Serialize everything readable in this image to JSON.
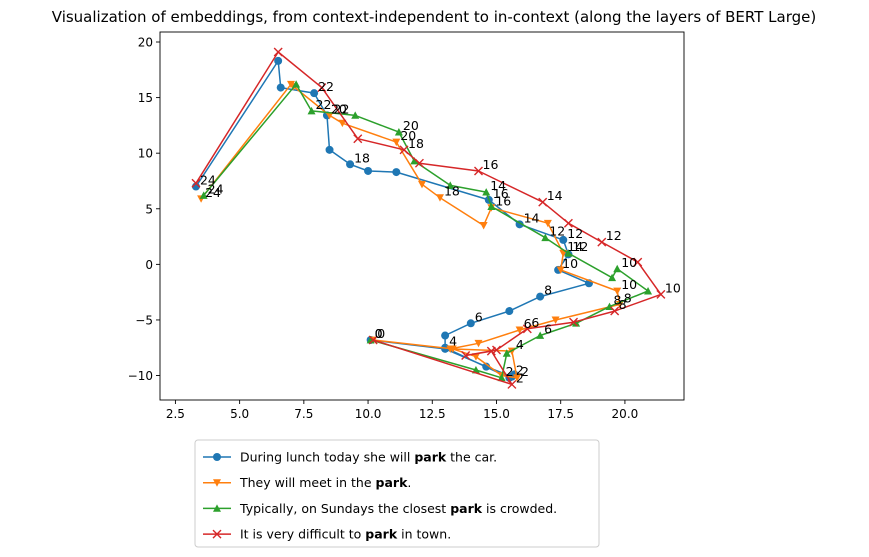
{
  "chart_data": {
    "type": "line",
    "title": "Visualization of embeddings, from context-independent to in-context (along the layers of BERT Large)",
    "xlabel": "",
    "ylabel": "",
    "xlim": [
      1.9,
      22.3
    ],
    "ylim": [
      -12.2,
      20.9
    ],
    "xticks": [
      2.5,
      5.0,
      7.5,
      10.0,
      12.5,
      15.0,
      17.5,
      20.0
    ],
    "xtick_labels": [
      "2.5",
      "5.0",
      "7.5",
      "10.0",
      "12.5",
      "15.0",
      "17.5",
      "20.0"
    ],
    "yticks": [
      -10,
      -5,
      0,
      5,
      10,
      15,
      20
    ],
    "ytick_labels": [
      "−10",
      "−5",
      "0",
      "5",
      "10",
      "15",
      "20"
    ],
    "legend_position": "below",
    "series": [
      {
        "name": "During lunch today she will park the car.",
        "legend_pre": "During lunch today she will ",
        "legend_bold": "park",
        "legend_post": " the car.",
        "color": "#1f77b4",
        "marker": "circle",
        "x": [
          10.1,
          13.0,
          14.6,
          15.6,
          15.7,
          15.5,
          13.0,
          13.0,
          14.0,
          15.5,
          16.7,
          18.6,
          17.4,
          17.8,
          17.6,
          15.9,
          14.7,
          11.1,
          10.0,
          9.3,
          8.5,
          8.4,
          7.9,
          6.6,
          6.5,
          3.3
        ],
        "y": [
          -6.8,
          -7.6,
          -9.2,
          -10.1,
          -9.9,
          -10.2,
          -7.5,
          -6.4,
          -5.3,
          -4.2,
          -2.9,
          -1.7,
          -0.5,
          0.9,
          2.2,
          3.6,
          5.8,
          8.3,
          8.4,
          9.0,
          10.3,
          13.4,
          15.4,
          15.9,
          18.3,
          7.0
        ],
        "labels": [
          {
            "i": 0,
            "text": "0"
          },
          {
            "i": 3,
            "text": "2"
          },
          {
            "i": 6,
            "text": "4"
          },
          {
            "i": 8,
            "text": "6"
          },
          {
            "i": 10,
            "text": "8"
          },
          {
            "i": 12,
            "text": "10"
          },
          {
            "i": 14,
            "text": "12"
          },
          {
            "i": 15,
            "text": "14"
          },
          {
            "i": 16,
            "text": "16"
          },
          {
            "i": 19,
            "text": "18"
          },
          {
            "i": 21,
            "text": "20"
          },
          {
            "i": 22,
            "text": "22"
          },
          {
            "i": 25,
            "text": "24"
          }
        ]
      },
      {
        "name": "They will meet in the park.",
        "legend_pre": "They will meet in the ",
        "legend_bold": "park",
        "legend_post": ".",
        "color": "#ff7f0e",
        "marker": "triangle-down",
        "x": [
          10.2,
          13.3,
          14.2,
          15.2,
          15.8,
          15.6,
          13.2,
          14.3,
          15.9,
          17.3,
          19.8,
          19.7,
          17.5,
          17.6,
          17.0,
          14.8,
          14.5,
          12.8,
          12.1,
          11.1,
          9.0,
          8.5,
          7.1,
          7.0,
          3.5
        ],
        "y": [
          -6.8,
          -7.6,
          -8.3,
          -10.0,
          -10.2,
          -7.8,
          -7.6,
          -7.1,
          -5.9,
          -5.0,
          -3.6,
          -2.4,
          -0.5,
          1.0,
          3.7,
          5.1,
          3.5,
          6.0,
          7.2,
          11.0,
          12.7,
          13.4,
          16.0,
          16.2,
          5.9
        ],
        "labels": [
          {
            "i": 0,
            "text": "0"
          },
          {
            "i": 4,
            "text": "2"
          },
          {
            "i": 5,
            "text": "4"
          },
          {
            "i": 8,
            "text": "6"
          },
          {
            "i": 10,
            "text": "8"
          },
          {
            "i": 11,
            "text": "10"
          },
          {
            "i": 13,
            "text": "14"
          },
          {
            "i": 15,
            "text": "16"
          },
          {
            "i": 17,
            "text": "18"
          },
          {
            "i": 19,
            "text": "20"
          },
          {
            "i": 21,
            "text": "22"
          },
          {
            "i": 24,
            "text": "24"
          }
        ]
      },
      {
        "name": "Typically, on Sundays the closest park is crowded.",
        "legend_pre": "Typically, on Sundays the closest ",
        "legend_bold": "park",
        "legend_post": " is crowded.",
        "color": "#2ca02c",
        "marker": "triangle-up",
        "x": [
          10.1,
          14.2,
          15.2,
          15.4,
          16.7,
          18.1,
          19.4,
          20.9,
          19.7,
          19.5,
          17.8,
          16.9,
          14.8,
          14.6,
          13.2,
          11.8,
          11.2,
          9.5,
          7.8,
          7.2,
          3.6
        ],
        "y": [
          -6.8,
          -9.5,
          -10.2,
          -8.0,
          -6.4,
          -5.3,
          -3.8,
          -2.4,
          -0.4,
          -1.2,
          1.0,
          2.4,
          5.2,
          6.5,
          7.1,
          9.3,
          11.9,
          13.4,
          13.8,
          16.2,
          6.2
        ],
        "labels": [
          {
            "i": 0,
            "text": "0"
          },
          {
            "i": 2,
            "text": "2"
          },
          {
            "i": 4,
            "text": "6"
          },
          {
            "i": 6,
            "text": "8"
          },
          {
            "i": 8,
            "text": "10"
          },
          {
            "i": 10,
            "text": "12"
          },
          {
            "i": 11,
            "text": "12"
          },
          {
            "i": 13,
            "text": "14"
          },
          {
            "i": 16,
            "text": "20"
          },
          {
            "i": 18,
            "text": "22"
          },
          {
            "i": 20,
            "text": "24"
          }
        ]
      },
      {
        "name": "It is very difficult to park in town.",
        "legend_pre": "It is very difficult to ",
        "legend_bold": "park",
        "legend_post": " in town.",
        "color": "#d62728",
        "marker": "x",
        "x": [
          10.2,
          15.6,
          14.8,
          13.8,
          15.0,
          16.2,
          18.0,
          19.6,
          21.4,
          20.5,
          19.1,
          17.8,
          16.8,
          14.3,
          12.0,
          11.4,
          9.6,
          8.2,
          6.5,
          3.3
        ],
        "y": [
          -6.8,
          -10.8,
          -7.8,
          -8.2,
          -7.7,
          -5.8,
          -5.2,
          -4.2,
          -2.7,
          0.2,
          2.0,
          3.7,
          5.6,
          8.4,
          9.1,
          10.3,
          11.3,
          15.9,
          19.1,
          7.3
        ],
        "labels": [
          {
            "i": 1,
            "text": "2"
          },
          {
            "i": 5,
            "text": "6"
          },
          {
            "i": 7,
            "text": "8"
          },
          {
            "i": 8,
            "text": "10"
          },
          {
            "i": 10,
            "text": "12"
          },
          {
            "i": 12,
            "text": "14"
          },
          {
            "i": 13,
            "text": "16"
          },
          {
            "i": 15,
            "text": "18"
          }
        ]
      }
    ]
  }
}
